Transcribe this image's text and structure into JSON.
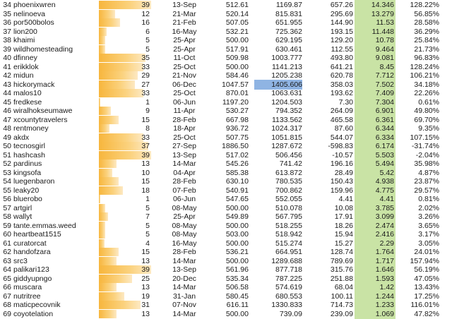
{
  "table": {
    "bar_max": 39,
    "rows": [
      {
        "n": "34",
        "name": "phoenixwren",
        "count": 39,
        "date": "13-Sep",
        "a": "512.61",
        "b": "1169.87",
        "c": "657.26",
        "d": "14.346",
        "e": "128.22%"
      },
      {
        "n": "35",
        "name": "nelinoeva",
        "count": 12,
        "date": "21-Mar",
        "a": "520.14",
        "b": "815.831",
        "c": "295.69",
        "d": "13.279",
        "e": "56.85%"
      },
      {
        "n": "36",
        "name": "por500bolos",
        "count": 16,
        "date": "21-Feb",
        "a": "507.05",
        "b": "651.955",
        "c": "144.90",
        "d": "11.53",
        "e": "28.58%"
      },
      {
        "n": "37",
        "name": "lion200",
        "count": 6,
        "date": "16-May",
        "a": "532.21",
        "b": "725.362",
        "c": "193.15",
        "d": "11.448",
        "e": "36.29%"
      },
      {
        "n": "38",
        "name": "khaimi",
        "count": 5,
        "date": "25-Apr",
        "a": "500.00",
        "b": "629.195",
        "c": "129.20",
        "d": "10.78",
        "e": "25.84%"
      },
      {
        "n": "39",
        "name": "wildhomesteading",
        "count": 5,
        "date": "25-Apr",
        "a": "517.91",
        "b": "630.461",
        "c": "112.55",
        "d": "9.464",
        "e": "21.73%"
      },
      {
        "n": "40",
        "name": "dfinney",
        "count": 35,
        "date": "11-Oct",
        "a": "509.98",
        "b": "1003.777",
        "c": "493.80",
        "d": "9.081",
        "e": "96.83%"
      },
      {
        "n": "41",
        "name": "erikklok",
        "count": 33,
        "date": "25-Oct",
        "a": "500.00",
        "b": "1141.213",
        "c": "641.21",
        "d": "8.45",
        "e": "128.24%"
      },
      {
        "n": "42",
        "name": "midun",
        "count": 29,
        "date": "21-Nov",
        "a": "584.46",
        "b": "1205.238",
        "c": "620.78",
        "d": "7.712",
        "e": "106.21%"
      },
      {
        "n": "43",
        "name": "hickorymack",
        "count": 27,
        "date": "06-Dec",
        "a": "1047.57",
        "b": "1405.606",
        "c": "358.03",
        "d": "7.502",
        "e": "34.18%",
        "highlight": true
      },
      {
        "n": "44",
        "name": "malos10",
        "count": 33,
        "date": "25-Oct",
        "a": "870.01",
        "b": "1063.631",
        "c": "193.62",
        "d": "7.409",
        "e": "22.26%"
      },
      {
        "n": "45",
        "name": "fredkese",
        "count": 1,
        "date": "06-Jun",
        "a": "1197.20",
        "b": "1204.503",
        "c": "7.30",
        "d": "7.304",
        "e": "0.61%"
      },
      {
        "n": "46",
        "name": "wiralhokseumawe",
        "count": 9,
        "date": "11-Apr",
        "a": "530.27",
        "b": "794.352",
        "c": "264.09",
        "d": "6.901",
        "e": "49.80%"
      },
      {
        "n": "47",
        "name": "xcountytravelers",
        "count": 15,
        "date": "28-Feb",
        "a": "667.98",
        "b": "1133.562",
        "c": "465.58",
        "d": "6.361",
        "e": "69.70%"
      },
      {
        "n": "48",
        "name": "rentmoney",
        "count": 8,
        "date": "18-Apr",
        "a": "936.72",
        "b": "1024.317",
        "c": "87.60",
        "d": "6.344",
        "e": "9.35%"
      },
      {
        "n": "49",
        "name": "akdx",
        "count": 33,
        "date": "25-Oct",
        "a": "507.75",
        "b": "1051.815",
        "c": "544.07",
        "d": "6.334",
        "e": "107.15%"
      },
      {
        "n": "50",
        "name": "tecnosgirl",
        "count": 37,
        "date": "27-Sep",
        "a": "1886.50",
        "b": "1287.672",
        "c": "-598.83",
        "d": "6.174",
        "e": "-31.74%"
      },
      {
        "n": "51",
        "name": "hashcash",
        "count": 39,
        "date": "13-Sep",
        "a": "517.02",
        "b": "506.456",
        "c": "-10.57",
        "d": "5.503",
        "e": "-2.04%"
      },
      {
        "n": "52",
        "name": "pardinus",
        "count": 13,
        "date": "14-Mar",
        "a": "545.26",
        "b": "741.42",
        "c": "196.16",
        "d": "5.494",
        "e": "35.98%"
      },
      {
        "n": "53",
        "name": "kingsofa",
        "count": 10,
        "date": "04-Apr",
        "a": "585.38",
        "b": "613.872",
        "c": "28.49",
        "d": "5.42",
        "e": "4.87%"
      },
      {
        "n": "54",
        "name": "luegenbaron",
        "count": 15,
        "date": "28-Feb",
        "a": "630.10",
        "b": "780.535",
        "c": "150.43",
        "d": "4.938",
        "e": "23.87%"
      },
      {
        "n": "55",
        "name": "leaky20",
        "count": 18,
        "date": "07-Feb",
        "a": "540.91",
        "b": "700.862",
        "c": "159.96",
        "d": "4.775",
        "e": "29.57%"
      },
      {
        "n": "56",
        "name": "bluerobo",
        "count": 1,
        "date": "06-Jun",
        "a": "547.65",
        "b": "552.055",
        "c": "4.41",
        "d": "4.41",
        "e": "0.81%"
      },
      {
        "n": "57",
        "name": "artgirl",
        "count": 5,
        "date": "08-May",
        "a": "500.00",
        "b": "510.078",
        "c": "10.08",
        "d": "3.785",
        "e": "2.02%"
      },
      {
        "n": "58",
        "name": "wallyt",
        "count": 7,
        "date": "25-Apr",
        "a": "549.89",
        "b": "567.795",
        "c": "17.91",
        "d": "3.099",
        "e": "3.26%"
      },
      {
        "n": "59",
        "name": "tante.emmas.weed",
        "count": 5,
        "date": "08-May",
        "a": "500.00",
        "b": "518.255",
        "c": "18.26",
        "d": "2.474",
        "e": "3.65%"
      },
      {
        "n": "60",
        "name": "heartbeat1515",
        "count": 5,
        "date": "08-May",
        "a": "503.00",
        "b": "518.942",
        "c": "15.94",
        "d": "2.416",
        "e": "3.17%"
      },
      {
        "n": "61",
        "name": "curatorcat",
        "count": 4,
        "date": "16-May",
        "a": "500.00",
        "b": "515.274",
        "c": "15.27",
        "d": "2.29",
        "e": "3.05%"
      },
      {
        "n": "62",
        "name": "handofzara",
        "count": 15,
        "date": "28-Feb",
        "a": "536.21",
        "b": "664.951",
        "c": "128.74",
        "d": "1.764",
        "e": "24.01%"
      },
      {
        "n": "63",
        "name": "src3",
        "count": 13,
        "date": "14-Mar",
        "a": "500.00",
        "b": "1289.688",
        "c": "789.69",
        "d": "1.717",
        "e": "157.94%"
      },
      {
        "n": "64",
        "name": "palikari123",
        "count": 39,
        "date": "13-Sep",
        "a": "561.96",
        "b": "877.718",
        "c": "315.76",
        "d": "1.646",
        "e": "56.19%"
      },
      {
        "n": "65",
        "name": "giddyupngo",
        "count": 25,
        "date": "20-Dec",
        "a": "535.34",
        "b": "787.225",
        "c": "251.88",
        "d": "1.593",
        "e": "47.05%"
      },
      {
        "n": "66",
        "name": "muscara",
        "count": 13,
        "date": "14-Mar",
        "a": "506.58",
        "b": "574.619",
        "c": "68.04",
        "d": "1.42",
        "e": "13.43%"
      },
      {
        "n": "67",
        "name": "nutritree",
        "count": 19,
        "date": "31-Jan",
        "a": "580.45",
        "b": "680.553",
        "c": "100.11",
        "d": "1.244",
        "e": "17.25%"
      },
      {
        "n": "68",
        "name": "maticpecovnik",
        "count": 31,
        "date": "07-Nov",
        "a": "616.11",
        "b": "1330.833",
        "c": "714.73",
        "d": "1.233",
        "e": "116.01%"
      },
      {
        "n": "69",
        "name": "coyotelation",
        "count": 13,
        "date": "14-Mar",
        "a": "500.00",
        "b": "739.09",
        "c": "239.09",
        "d": "1.069",
        "e": "47.82%"
      }
    ]
  }
}
